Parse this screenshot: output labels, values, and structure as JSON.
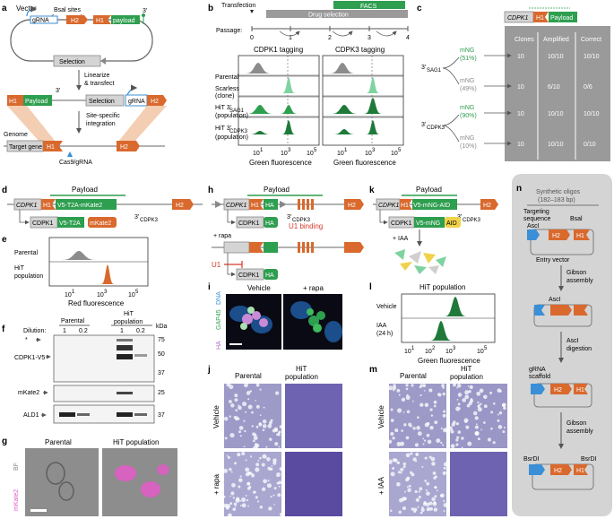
{
  "colors": {
    "orange": "#d9692d",
    "green": "#2e9e4f",
    "dark_green": "#1f7a3a",
    "light_green": "#7fd3a0",
    "blue": "#3a8fd6",
    "grey": "#8c8c8c",
    "light_grey": "#d4d4d4",
    "panel_grey": "#9a9a9a",
    "purple": "#5a4aa0",
    "red": "#d43a2a",
    "pink": "#e45ac8",
    "yellow": "#f0d24a"
  },
  "panels": {
    "a": {
      "letter": "a",
      "vector_label": "Vector",
      "bsal_sites": "Bsal sites",
      "grna": "gRNA",
      "h2": "H2",
      "h1": "H1",
      "payload": "payload",
      "three_prime": "3'",
      "selection": "Selection",
      "linearize": "Linearize",
      "transfect": "& transfect",
      "H1b": "H1",
      "payload_b": "Payload",
      "three_prime_b": "3'",
      "selection_b": "Selection",
      "grna_b": "gRNA",
      "h2b": "H2",
      "site_specific": "Site-specific",
      "integration": "integration",
      "genome": "Genome",
      "target_gene": "Target gene",
      "h1c": "H1",
      "h2c": "H2",
      "cas9": "Cas9/gRNA"
    },
    "b": {
      "letter": "b",
      "transfection": "Transfection",
      "facs": "FACS",
      "drug_selection": "Drug selection",
      "passage": "Passage:",
      "passages": [
        "0",
        "1",
        "2",
        "3",
        "4"
      ],
      "col1_title": "CDPK1 tagging",
      "col2_title": "CDPK3 tagging",
      "rows": [
        "Parental",
        "Scarless",
        "(clone)",
        "HiT 3'",
        "SAG1",
        "(population)",
        "HiT 3'",
        "CDPK3",
        "(population)"
      ],
      "ticks": [
        "10",
        "10",
        "10"
      ],
      "tick_exp": [
        "1",
        "3",
        "5"
      ],
      "xlabel": "Green fluorescence"
    },
    "c": {
      "letter": "c",
      "cdpk1": "CDPK1",
      "h1": "H1",
      "payload": "Payload",
      "col_headers": [
        "Clones",
        "Amplified",
        "Correct"
      ],
      "label_sag1": "3'",
      "label_sag1_sub": "SAG1",
      "label_cdpk3": "3'",
      "label_cdpk3_sub": "CDPK3",
      "rows": [
        {
          "label": "mNG",
          "pct": "(51%)",
          "clones": "10",
          "amplified": "10/10",
          "correct": "10/10"
        },
        {
          "label": "mNG",
          "pct": "(49%)",
          "clones": "10",
          "amplified": "6/10",
          "correct": "0/6"
        },
        {
          "label": "mNG",
          "pct": "(90%)",
          "clones": "10",
          "amplified": "10/10",
          "correct": "10/10"
        },
        {
          "label": "mNG",
          "pct": "(10%)",
          "clones": "10",
          "amplified": "10/10",
          "correct": "0/10"
        }
      ]
    },
    "d": {
      "letter": "d",
      "payload": "Payload",
      "cdpk1": "CDPK1",
      "h1": "H1",
      "v5t2a": "V5-T2A-mKate2",
      "three_prime": "3'",
      "cdpk3": "CDPK3",
      "h2": "H2",
      "prod_cdpk1": "CDPK1",
      "prod_v5": "V5-T2A",
      "prod_mkate": "mKate2"
    },
    "e": {
      "letter": "e",
      "rows": [
        "Parental",
        "HiT",
        "population"
      ],
      "ticks": [
        "10",
        "10",
        "10"
      ],
      "tick_exp": [
        "1",
        "3",
        "5"
      ],
      "xlabel": "Red fluorescence"
    },
    "f": {
      "letter": "f",
      "parental": "Parental",
      "hit": "HiT",
      "population": "population",
      "dilution": "Dilution:",
      "dil_values": [
        "1",
        "0.2",
        "1",
        "0.2"
      ],
      "kda": "kDa",
      "markers": [
        "75",
        "50",
        "37",
        "25",
        "37"
      ],
      "star": "*",
      "cdpk1_v5": "CDPK1-V5",
      "mkate2": "mKate2",
      "ald1": "ALD1"
    },
    "g": {
      "letter": "g",
      "parental": "Parental",
      "hit": "HiT population",
      "side1": "mKate2",
      "side2": "BF"
    },
    "h": {
      "letter": "h",
      "payload": "Payload",
      "cdpk1": "CDPK1",
      "h1": "H1",
      "ha": "HA",
      "three_prime": "3'",
      "cdpk3": "CDPK3",
      "u1_binding": "U1 binding",
      "h2": "H2",
      "prod1_cdpk1": "CDPK1",
      "prod1_ha": "HA",
      "rapa": "+ rapa",
      "u1": "U1",
      "prod2_cdpk1": "CDPK1",
      "prod2_ha": "HA"
    },
    "i": {
      "letter": "i",
      "vehicle": "Vehicle",
      "rapa": "+ rapa",
      "dna": "DNA",
      "gap45": "GAP45",
      "ha": "HA"
    },
    "j": {
      "letter": "j",
      "parental": "Parental",
      "hit": "HiT",
      "population": "population",
      "vehicle": "Vehicle",
      "rapa": "+ rapa"
    },
    "k": {
      "letter": "k",
      "payload": "Payload",
      "cdpk1": "CDPK1",
      "h1": "H1",
      "v5mngaid": "V5-mNG-AID",
      "three_prime": "3'",
      "cdpk3": "CDPK3",
      "h2": "H2",
      "prod_cdpk1": "CDPK1",
      "prod_v5mng": "V5-mNG",
      "prod_aid": "AID",
      "iaa": "+ IAA"
    },
    "l": {
      "letter": "l",
      "title": "HiT population",
      "rows": [
        "Vehicle",
        "IAA",
        "(24 h)"
      ],
      "ticks": [
        "10",
        "10",
        "10",
        "10"
      ],
      "tick_exp": [
        "1",
        "2",
        "3",
        "5"
      ],
      "xlabel": "Green fluorescence"
    },
    "m": {
      "letter": "m",
      "parental": "Parental",
      "hit": "HiT",
      "population": "population",
      "vehicle": "Vehicle",
      "iaa": "+ IAA"
    },
    "n": {
      "letter": "n",
      "synthetic": "Synthetic oligos",
      "bp": "(182–183 bp)",
      "targeting": "Targeting",
      "sequence": "sequence",
      "bsal": "Bsal",
      "ascl": "AscI",
      "h2": "H2",
      "h1": "H1",
      "entry": "Entry vector",
      "gibson1": "Gibson",
      "assembly1": "assembly",
      "ascl2": "AscI",
      "ascl_dig": "AscI",
      "digestion": "digestion",
      "grna": "gRNA",
      "scaffold": "scaffold",
      "h2b": "H2",
      "h1b": "H1",
      "gibson2": "Gibson",
      "assembly2": "assembly",
      "bsrdi1": "BsrDI",
      "bsrdi2": "BsrDI",
      "h2c": "H2",
      "h1c": "H1"
    }
  }
}
